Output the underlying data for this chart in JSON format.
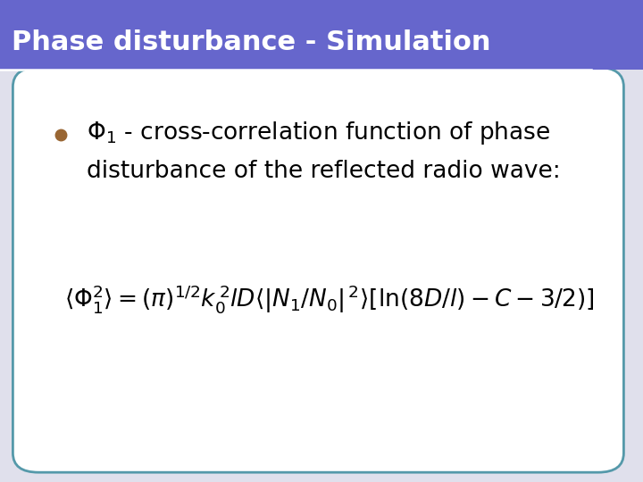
{
  "title": "Phase disturbance - Simulation",
  "title_bg_color": "#6666cc",
  "title_text_color": "#ffffff",
  "title_fontsize": 22,
  "bg_color": "#e0e0ec",
  "card_bg_color": "#ffffff",
  "card_border_color": "#5599aa",
  "bullet_color": "#996633",
  "body_fontsize": 19,
  "formula_fontsize": 19,
  "separator_color": "#ffffff",
  "separator_linewidth": 1.8
}
